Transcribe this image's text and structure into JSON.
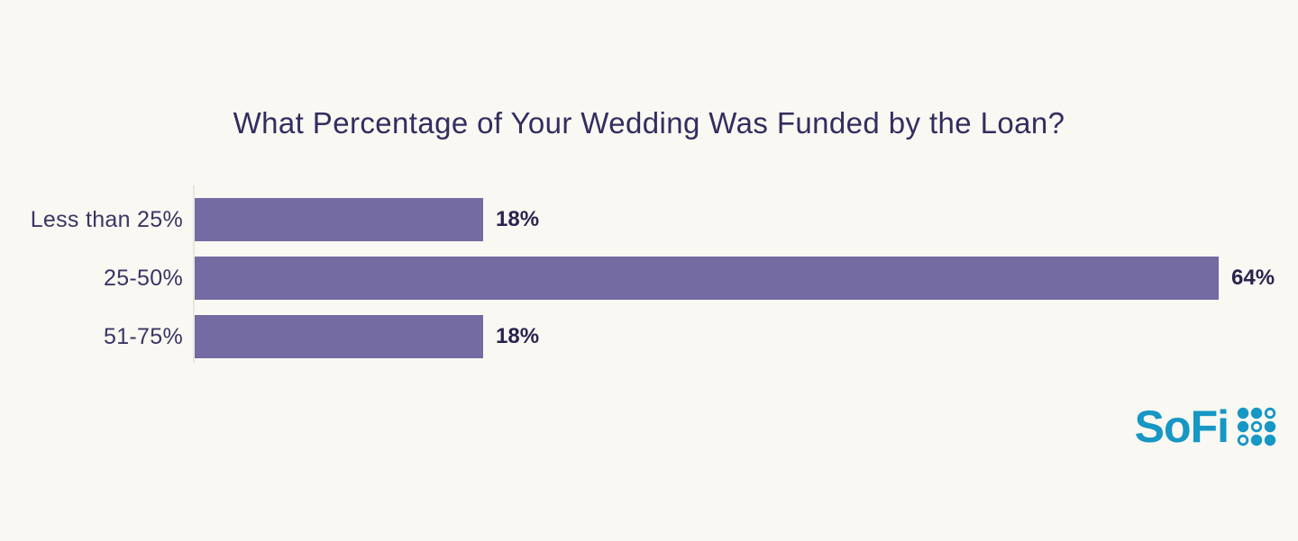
{
  "chart_data": {
    "type": "bar",
    "orientation": "horizontal",
    "title": "What Percentage of Your Wedding Was Funded by the Loan?",
    "categories": [
      "Less than 25%",
      "25-50%",
      "51-75%"
    ],
    "values": [
      18,
      64,
      18
    ],
    "value_labels": [
      "18%",
      "64%",
      "18%"
    ],
    "xlim": [
      0,
      64
    ],
    "xlabel": "",
    "ylabel": "",
    "grid": false,
    "legend": "none"
  },
  "theme": {
    "background": "#faf8f2",
    "bar": "#746ba3",
    "title": "#332d5f",
    "label": "#3a3565",
    "value": "#2a2350",
    "axis": "#e9e6de",
    "logo": "#1697c4"
  },
  "branding": {
    "logo_text": "SoFi"
  }
}
